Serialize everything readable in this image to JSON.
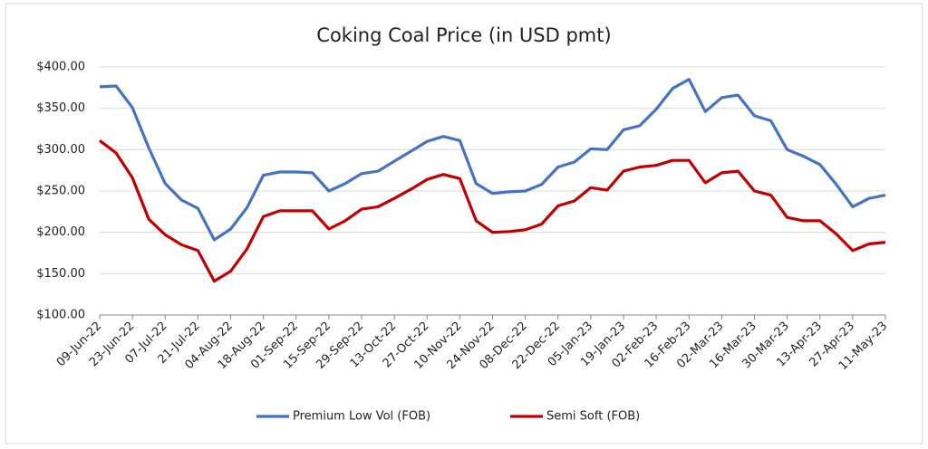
{
  "chart_data": {
    "type": "line",
    "title": "Coking Coal Price (in USD pmt)",
    "categories": [
      "09-Jun-22",
      null,
      "23-Jun-22",
      null,
      "07-Jul-22",
      null,
      "21-Jul-22",
      null,
      "04-Aug-22",
      null,
      "18-Aug-22",
      null,
      "01-Sep-22",
      null,
      "15-Sep-22",
      null,
      "29-Sep-22",
      null,
      "13-Oct-22",
      null,
      "27-Oct-22",
      null,
      "10-Nov-22",
      null,
      "24-Nov-22",
      null,
      "08-Dec-22",
      null,
      "22-Dec-22",
      null,
      "05-Jan-23",
      null,
      "19-Jan-23",
      null,
      "02-Feb-23",
      null,
      "16-Feb-23",
      null,
      "02-Mar-23",
      null,
      "16-Mar-23",
      null,
      "30-Mar-23",
      null,
      "13-Apr-23",
      null,
      "27-Apr-23",
      null,
      "11-May-23"
    ],
    "series": [
      {
        "name": "Premium Low Vol (FOB)",
        "color": "#4472c4",
        "values": [
          376,
          377,
          351,
          302,
          259,
          239,
          229,
          191,
          204,
          230,
          269,
          273,
          273,
          272,
          250,
          259,
          271,
          274,
          286,
          298,
          310,
          316,
          311,
          259,
          247,
          249,
          250,
          258,
          279,
          285,
          301,
          300,
          324,
          329,
          349,
          374,
          385,
          346,
          363,
          366,
          341,
          335,
          300,
          292,
          282,
          258,
          231,
          241,
          245
        ]
      },
      {
        "name": "Semi Soft (FOB)",
        "color": "#c00000",
        "values": [
          311,
          296,
          266,
          216,
          197,
          185,
          178,
          141,
          153,
          180,
          219,
          226,
          226,
          226,
          204,
          214,
          228,
          231,
          241,
          252,
          264,
          270,
          265,
          214,
          200,
          201,
          203,
          210,
          232,
          238,
          254,
          251,
          274,
          279,
          281,
          287,
          287,
          260,
          272,
          274,
          250,
          245,
          218,
          214,
          214,
          198,
          178,
          186,
          188
        ]
      }
    ],
    "ylim": [
      100,
      400
    ],
    "yticks": [
      {
        "value": 100,
        "label": "$100.00"
      },
      {
        "value": 150,
        "label": "$150.00"
      },
      {
        "value": 200,
        "label": "$200.00"
      },
      {
        "value": 250,
        "label": "$250.00"
      },
      {
        "value": 300,
        "label": "$300.00"
      },
      {
        "value": 350,
        "label": "$350.00"
      },
      {
        "value": 400,
        "label": "$400.00"
      }
    ],
    "grid": true,
    "legend": "bottom"
  }
}
